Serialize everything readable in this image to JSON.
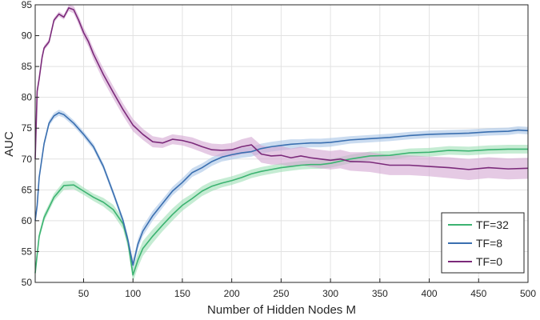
{
  "chart_data": {
    "type": "line",
    "xlabel": "Number of Hidden Nodes M",
    "ylabel": "AUC",
    "xlim": [
      1,
      500
    ],
    "ylim": [
      50,
      95
    ],
    "x_ticks": [
      50,
      100,
      150,
      200,
      250,
      300,
      350,
      400,
      450,
      500
    ],
    "y_ticks": [
      50,
      55,
      60,
      65,
      70,
      75,
      80,
      85,
      90,
      95
    ],
    "grid": true,
    "legend_position": "bottom-right",
    "series": [
      {
        "name": "TF=32",
        "color": "#3cb371",
        "band_color": "#9ee0b6",
        "x": [
          1,
          5,
          10,
          20,
          30,
          40,
          50,
          60,
          70,
          80,
          90,
          95,
          100,
          105,
          110,
          120,
          130,
          140,
          150,
          160,
          170,
          180,
          190,
          200,
          210,
          220,
          230,
          240,
          250,
          260,
          270,
          280,
          290,
          300,
          320,
          340,
          360,
          380,
          400,
          420,
          440,
          460,
          480,
          500
        ],
        "y": [
          51.5,
          57.5,
          60.5,
          63.8,
          65.7,
          65.8,
          64.8,
          63.8,
          63.0,
          61.8,
          59.5,
          56.5,
          51.2,
          53.6,
          55.5,
          57.5,
          59.3,
          61.0,
          62.5,
          63.6,
          64.8,
          65.6,
          66.1,
          66.5,
          67.0,
          67.6,
          68.0,
          68.3,
          68.6,
          68.8,
          69.0,
          69.1,
          69.1,
          69.3,
          70.0,
          70.5,
          70.6,
          71.0,
          71.1,
          71.4,
          71.3,
          71.5,
          71.6,
          71.6
        ],
        "band": [
          0.5,
          0.6,
          0.6,
          0.6,
          0.7,
          0.7,
          0.6,
          0.6,
          0.7,
          0.8,
          0.9,
          1.0,
          1.1,
          1.2,
          1.2,
          1.1,
          1.0,
          1.0,
          0.9,
          0.8,
          0.8,
          0.8,
          0.7,
          0.7,
          0.7,
          0.7,
          0.7,
          0.7,
          0.7,
          0.7,
          0.7,
          0.7,
          0.7,
          0.7,
          0.7,
          0.7,
          0.7,
          0.7,
          0.7,
          0.7,
          0.7,
          0.7,
          0.7,
          0.7
        ]
      },
      {
        "name": "TF=8",
        "color": "#3a6fb0",
        "band_color": "#a8c4e6",
        "x": [
          1,
          3,
          5,
          10,
          15,
          20,
          25,
          30,
          40,
          50,
          60,
          70,
          80,
          90,
          95,
          100,
          105,
          110,
          120,
          130,
          140,
          150,
          160,
          170,
          180,
          190,
          200,
          210,
          220,
          230,
          240,
          250,
          260,
          270,
          280,
          290,
          300,
          320,
          340,
          360,
          380,
          400,
          420,
          440,
          460,
          480,
          490,
          500
        ],
        "y": [
          60.0,
          62.5,
          67.0,
          72.5,
          75.8,
          77.0,
          77.5,
          77.2,
          75.8,
          74.0,
          72.0,
          68.8,
          64.5,
          60.0,
          56.8,
          52.8,
          56.2,
          58.3,
          60.8,
          62.8,
          64.8,
          66.2,
          67.8,
          68.6,
          69.6,
          70.3,
          70.7,
          71.0,
          71.2,
          71.7,
          72.0,
          72.2,
          72.4,
          72.5,
          72.6,
          72.6,
          72.7,
          73.1,
          73.3,
          73.5,
          73.8,
          74.0,
          74.1,
          74.2,
          74.4,
          74.5,
          74.7,
          74.6
        ],
        "band": [
          0.5,
          0.5,
          0.5,
          0.5,
          0.5,
          0.5,
          0.5,
          0.5,
          0.5,
          0.5,
          0.5,
          0.5,
          0.5,
          0.5,
          0.6,
          0.8,
          0.8,
          0.8,
          0.8,
          0.7,
          0.7,
          0.7,
          0.7,
          0.7,
          0.7,
          0.7,
          0.8,
          0.8,
          0.8,
          0.8,
          0.8,
          0.8,
          0.8,
          0.7,
          0.7,
          0.7,
          0.7,
          0.6,
          0.6,
          0.6,
          0.6,
          0.6,
          0.6,
          0.6,
          0.6,
          0.6,
          0.6,
          0.6
        ]
      },
      {
        "name": "TF=0",
        "color": "#7b2a7a",
        "band_color": "#d3a6d2",
        "x": [
          1,
          3,
          5,
          8,
          10,
          15,
          20,
          25,
          30,
          35,
          40,
          45,
          50,
          55,
          60,
          70,
          80,
          90,
          100,
          110,
          120,
          130,
          140,
          150,
          160,
          170,
          180,
          190,
          200,
          210,
          220,
          230,
          240,
          250,
          260,
          270,
          280,
          290,
          300,
          310,
          320,
          340,
          360,
          380,
          400,
          420,
          440,
          460,
          480,
          500
        ],
        "y": [
          70.0,
          81.0,
          83.0,
          86.5,
          88.0,
          89.0,
          92.5,
          93.5,
          93.0,
          94.5,
          94.2,
          92.5,
          90.5,
          89.0,
          87.0,
          83.7,
          80.8,
          78.0,
          75.5,
          74.0,
          72.8,
          72.6,
          73.2,
          73.0,
          72.6,
          72.0,
          71.5,
          71.4,
          71.5,
          72.0,
          72.3,
          70.8,
          70.5,
          70.6,
          70.2,
          70.5,
          70.2,
          70.0,
          69.8,
          70.0,
          69.6,
          69.5,
          69.0,
          69.0,
          68.8,
          68.6,
          68.3,
          68.6,
          68.4,
          68.5
        ],
        "band": [
          0.4,
          0.4,
          0.4,
          0.4,
          0.4,
          0.4,
          0.4,
          0.4,
          0.4,
          0.5,
          0.6,
          0.7,
          0.8,
          0.8,
          0.9,
          1.0,
          1.0,
          1.0,
          1.0,
          0.9,
          0.9,
          0.8,
          0.8,
          0.8,
          0.9,
          0.9,
          1.0,
          1.0,
          1.1,
          1.2,
          1.3,
          1.4,
          1.4,
          1.5,
          1.5,
          1.5,
          1.5,
          1.5,
          1.5,
          1.5,
          1.5,
          1.6,
          1.6,
          1.6,
          1.6,
          1.7,
          1.7,
          1.7,
          1.7,
          1.7
        ]
      }
    ]
  }
}
